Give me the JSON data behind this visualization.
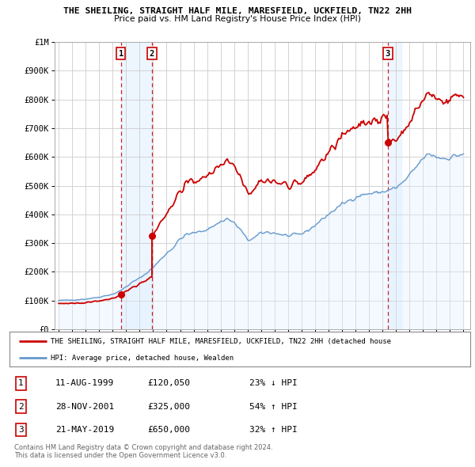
{
  "title": "THE SHEILING, STRAIGHT HALF MILE, MARESFIELD, UCKFIELD, TN22 2HH",
  "subtitle": "Price paid vs. HM Land Registry's House Price Index (HPI)",
  "ylim": [
    0,
    1000000
  ],
  "yticks": [
    0,
    100000,
    200000,
    300000,
    400000,
    500000,
    600000,
    700000,
    800000,
    900000,
    1000000
  ],
  "ytick_labels": [
    "£0",
    "£100K",
    "£200K",
    "£300K",
    "£400K",
    "£500K",
    "£600K",
    "£700K",
    "£800K",
    "£900K",
    "£1M"
  ],
  "xlim_start": 1994.7,
  "xlim_end": 2025.5,
  "xticks": [
    1995,
    1996,
    1997,
    1998,
    1999,
    2000,
    2001,
    2002,
    2003,
    2004,
    2005,
    2006,
    2007,
    2008,
    2009,
    2010,
    2011,
    2012,
    2013,
    2014,
    2015,
    2016,
    2017,
    2018,
    2019,
    2020,
    2021,
    2022,
    2023,
    2024,
    2025
  ],
  "sale_dates": [
    1999.61,
    2001.91,
    2019.39
  ],
  "sale_prices": [
    120050,
    325000,
    650000
  ],
  "sale_labels": [
    "1",
    "2",
    "3"
  ],
  "red_line_color": "#cc0000",
  "blue_line_color": "#6699cc",
  "blue_fill_color": "#ddeeff",
  "vline_color": "#cc0000",
  "shade_color": "#ddeeff",
  "legend_label_red": "THE SHEILING, STRAIGHT HALF MILE, MARESFIELD, UCKFIELD, TN22 2HH (detached house",
  "legend_label_blue": "HPI: Average price, detached house, Wealden",
  "table_rows": [
    [
      "1",
      "11-AUG-1999",
      "£120,050",
      "23% ↓ HPI"
    ],
    [
      "2",
      "28-NOV-2001",
      "£325,000",
      "54% ↑ HPI"
    ],
    [
      "3",
      "21-MAY-2019",
      "£650,000",
      "32% ↑ HPI"
    ]
  ],
  "footnote": "Contains HM Land Registry data © Crown copyright and database right 2024.\nThis data is licensed under the Open Government Licence v3.0.",
  "background_color": "#ffffff",
  "grid_color": "#cccccc",
  "hpi_anchors_t": [
    1995.0,
    1996.0,
    1997.0,
    1998.0,
    1999.0,
    1999.5,
    2000.0,
    2000.5,
    2001.0,
    2001.5,
    2002.0,
    2002.5,
    2003.0,
    2003.5,
    2004.0,
    2004.5,
    2005.0,
    2005.5,
    2006.0,
    2006.5,
    2007.0,
    2007.5,
    2008.0,
    2008.5,
    2009.0,
    2009.5,
    2010.0,
    2010.5,
    2011.0,
    2011.5,
    2012.0,
    2012.5,
    2013.0,
    2013.5,
    2014.0,
    2014.5,
    2015.0,
    2015.5,
    2016.0,
    2016.5,
    2017.0,
    2017.5,
    2018.0,
    2018.5,
    2019.0,
    2019.5,
    2020.0,
    2020.5,
    2021.0,
    2021.5,
    2022.0,
    2022.5,
    2023.0,
    2023.5,
    2024.0,
    2024.5,
    2025.0
  ],
  "hpi_anchors_v": [
    100000,
    102000,
    105000,
    112000,
    122000,
    132000,
    148000,
    165000,
    178000,
    195000,
    215000,
    240000,
    265000,
    285000,
    315000,
    330000,
    335000,
    340000,
    348000,
    360000,
    375000,
    385000,
    370000,
    345000,
    310000,
    318000,
    335000,
    338000,
    335000,
    330000,
    325000,
    328000,
    332000,
    345000,
    362000,
    382000,
    400000,
    418000,
    435000,
    448000,
    460000,
    468000,
    472000,
    475000,
    478000,
    485000,
    492000,
    510000,
    535000,
    565000,
    595000,
    610000,
    600000,
    595000,
    598000,
    605000,
    610000
  ]
}
